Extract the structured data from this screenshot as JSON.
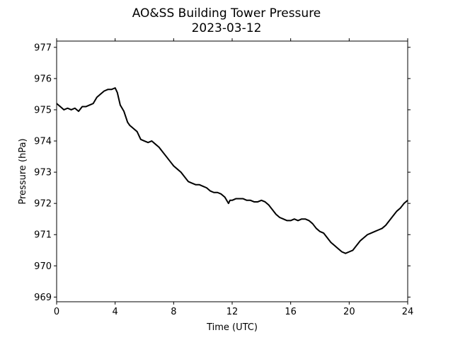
{
  "chart_data": {
    "type": "line",
    "title": "AO&SS Building Tower Pressure",
    "subtitle": "2023-03-12",
    "xlabel": "Time (UTC)",
    "ylabel": "Pressure (hPa)",
    "xlim": [
      0,
      24
    ],
    "ylim": [
      968.85,
      977.2
    ],
    "xticks": [
      0,
      4,
      8,
      12,
      16,
      20,
      24
    ],
    "yticks": [
      969,
      970,
      971,
      972,
      973,
      974,
      975,
      976,
      977
    ],
    "grid": false,
    "line_color": "#000000",
    "series": [
      {
        "x": [
          0,
          0.25,
          0.5,
          0.75,
          1.0,
          1.25,
          1.5,
          1.75,
          2.0,
          2.25,
          2.5,
          2.75,
          3.0,
          3.25,
          3.5,
          3.75,
          4.0,
          4.15,
          4.35,
          4.6,
          4.85,
          5.0,
          5.25,
          5.5,
          5.75,
          6.0,
          6.25,
          6.5,
          6.75,
          7.0,
          7.25,
          7.5,
          7.75,
          8.0,
          8.25,
          8.5,
          8.75,
          9.0,
          9.25,
          9.5,
          9.75,
          10.0,
          10.25,
          10.5,
          10.75,
          11.0,
          11.25,
          11.5,
          11.75,
          11.85,
          12.0,
          12.25,
          12.5,
          12.75,
          13.0,
          13.25,
          13.5,
          13.75,
          14.0,
          14.25,
          14.5,
          14.75,
          15.0,
          15.25,
          15.5,
          15.75,
          16.0,
          16.25,
          16.5,
          16.75,
          17.0,
          17.25,
          17.5,
          17.75,
          18.0,
          18.25,
          18.5,
          18.75,
          19.0,
          19.25,
          19.5,
          19.75,
          20.0,
          20.25,
          20.5,
          20.75,
          21.0,
          21.25,
          21.5,
          21.75,
          22.0,
          22.25,
          22.5,
          22.75,
          23.0,
          23.25,
          23.5,
          23.75,
          24.0
        ],
        "y": [
          975.2,
          975.1,
          975.0,
          975.05,
          975.0,
          975.05,
          974.95,
          975.1,
          975.1,
          975.15,
          975.2,
          975.4,
          975.5,
          975.6,
          975.65,
          975.65,
          975.7,
          975.55,
          975.15,
          974.95,
          974.6,
          974.5,
          974.4,
          974.3,
          974.05,
          974.0,
          973.95,
          974.0,
          973.9,
          973.8,
          973.65,
          973.5,
          973.35,
          973.2,
          973.1,
          973.0,
          972.85,
          972.7,
          972.65,
          972.6,
          972.6,
          972.55,
          972.5,
          972.4,
          972.35,
          972.35,
          972.3,
          972.2,
          972.0,
          972.1,
          972.1,
          972.15,
          972.15,
          972.15,
          972.1,
          972.1,
          972.05,
          972.05,
          972.1,
          972.05,
          971.95,
          971.8,
          971.65,
          971.55,
          971.5,
          971.45,
          971.45,
          971.5,
          971.45,
          971.5,
          971.5,
          971.45,
          971.35,
          971.2,
          971.1,
          971.05,
          970.9,
          970.75,
          970.65,
          970.55,
          970.45,
          970.4,
          970.45,
          970.5,
          970.65,
          970.8,
          970.9,
          971.0,
          971.05,
          971.1,
          971.15,
          971.2,
          971.3,
          971.45,
          971.6,
          971.75,
          971.85,
          972.0,
          972.1
        ]
      }
    ]
  }
}
